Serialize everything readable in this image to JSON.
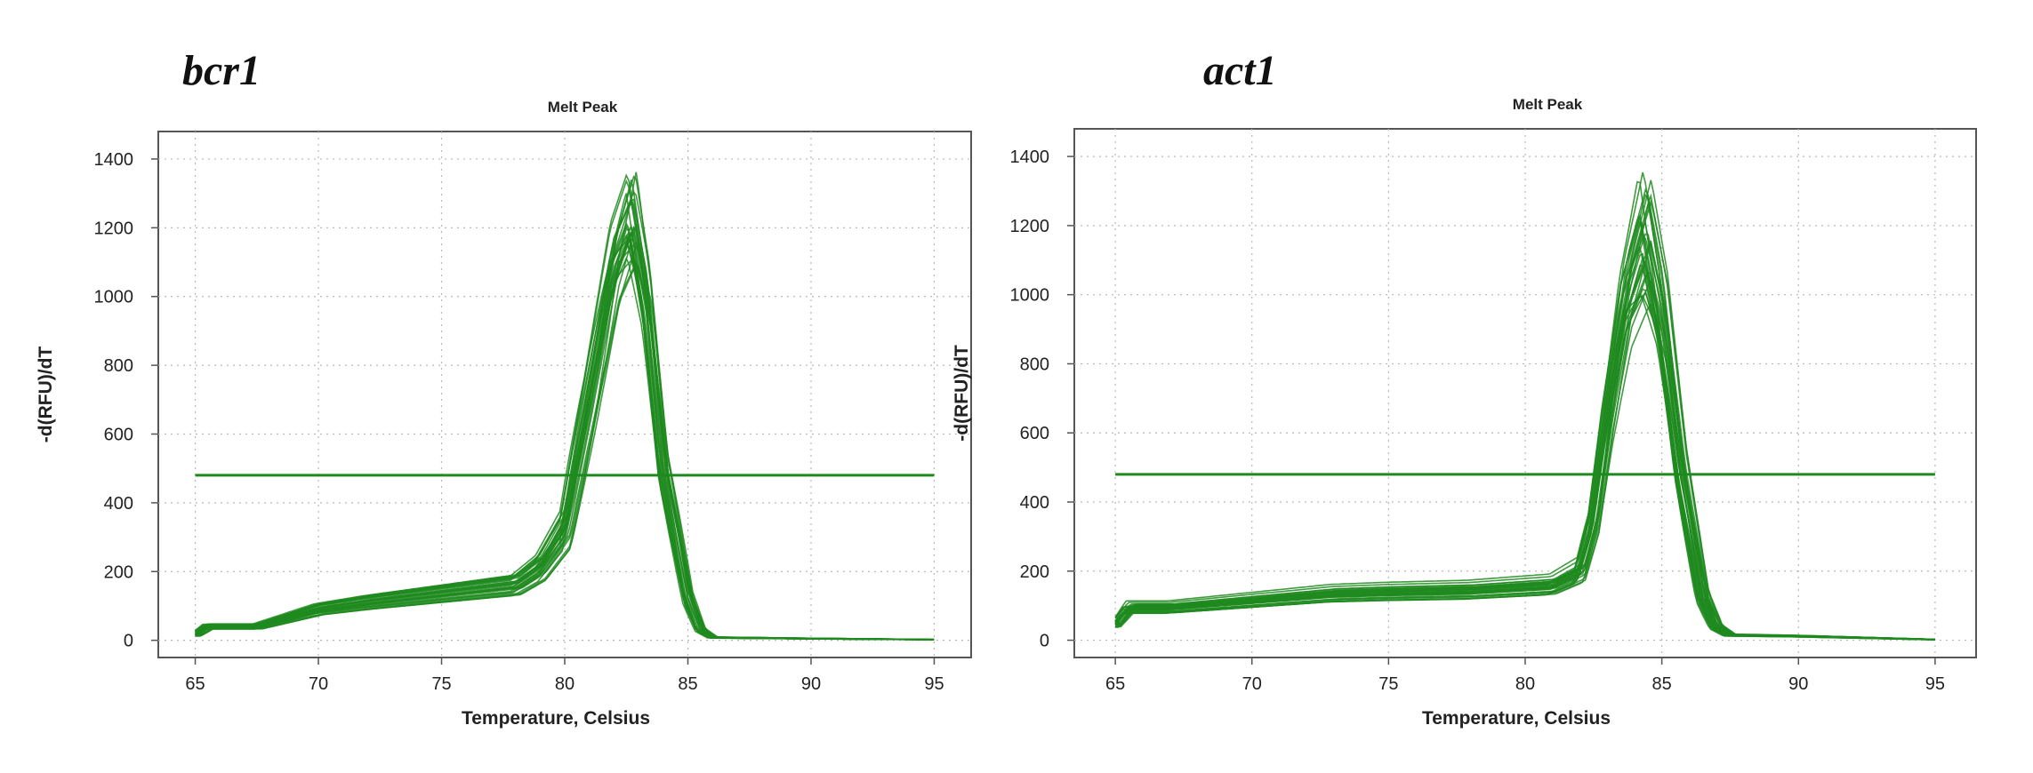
{
  "chart_data": [
    {
      "type": "line",
      "panel_label": "bcr1",
      "title": "Melt Peak",
      "xlabel": "Temperature, Celsius",
      "ylabel": "-d(RFU)/dT",
      "xlim": [
        63.5,
        96.5
      ],
      "ylim": [
        -50,
        1480
      ],
      "xticks": [
        65,
        70,
        75,
        80,
        85,
        90,
        95
      ],
      "yticks": [
        0,
        200,
        400,
        600,
        800,
        1000,
        1200,
        1400
      ],
      "grid": true,
      "threshold": 480,
      "line_color": "#1e8a1e",
      "series_count": 30,
      "peak_temperature": 82.7,
      "peak_range": [
        1090,
        1400
      ],
      "envelope_x": [
        65,
        65.5,
        67.5,
        68,
        70,
        72,
        75,
        78,
        79,
        80,
        81,
        82,
        82.7,
        83.3,
        84,
        85,
        85.5,
        86,
        90,
        95
      ],
      "envelope_y": [
        15,
        40,
        40,
        50,
        90,
        110,
        135,
        160,
        210,
        320,
        700,
        1100,
        1250,
        1000,
        500,
        120,
        30,
        8,
        5,
        2
      ]
    },
    {
      "type": "line",
      "panel_label": "act1",
      "title": "Melt Peak",
      "xlabel": "Temperature, Celsius",
      "ylabel": "-d(RFU)/dT",
      "xlim": [
        63.5,
        96.5
      ],
      "ylim": [
        -50,
        1480
      ],
      "xticks": [
        65,
        70,
        75,
        80,
        85,
        90,
        95
      ],
      "yticks": [
        0,
        200,
        400,
        600,
        800,
        1000,
        1200,
        1400
      ],
      "grid": true,
      "threshold": 480,
      "line_color": "#1e8a1e",
      "series_count": 30,
      "peak_temperature": 84.4,
      "peak_range": [
        960,
        1400
      ],
      "envelope_x": [
        65,
        65.5,
        67,
        70,
        73,
        75,
        78,
        81,
        82,
        82.5,
        83,
        83.7,
        84.4,
        85,
        85.7,
        86.5,
        87,
        87.5,
        90,
        95
      ],
      "envelope_y": [
        45,
        95,
        95,
        115,
        135,
        140,
        145,
        160,
        200,
        350,
        650,
        1000,
        1180,
        950,
        500,
        130,
        40,
        15,
        12,
        2
      ]
    }
  ]
}
